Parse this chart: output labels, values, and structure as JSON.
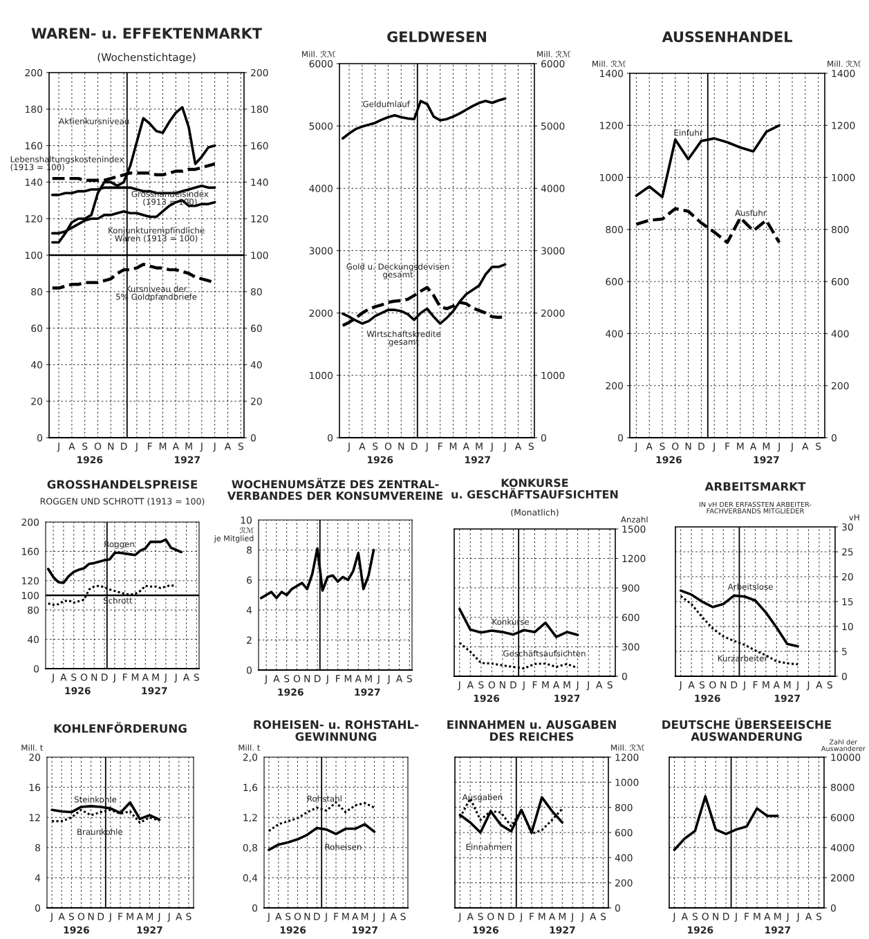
{
  "chart_data": [
    {
      "type": "line",
      "title": "WAREN- u. EFFEKTENMARKT",
      "subtitle": "(Wochenstichtage)",
      "categories": [
        null,
        "J",
        null,
        "A",
        null,
        "S",
        null,
        "O",
        null,
        "N",
        null,
        "D",
        null,
        "J",
        null,
        "F",
        null,
        "M",
        null,
        "A",
        null,
        "M",
        null,
        "J",
        null,
        "J",
        null,
        "A",
        null,
        "S"
      ],
      "ylim": [
        0,
        200
      ],
      "yticks": [
        0,
        20,
        40,
        60,
        80,
        100,
        120,
        140,
        160,
        180,
        200
      ],
      "y2lim": [
        0,
        200
      ],
      "y2ticks": [
        0,
        20,
        40,
        60,
        80,
        100,
        120,
        140,
        160,
        180,
        200
      ],
      "grid": true,
      "series": [
        {
          "name": "Aktienkursniveau",
          "color": "#000000",
          "line_style": "solid",
          "values": [
            107,
            107,
            112,
            118,
            120,
            120,
            122,
            134,
            140,
            140,
            138,
            140,
            149,
            162,
            175,
            172,
            168,
            167,
            173,
            178,
            181,
            170,
            150,
            154,
            159,
            160,
            null,
            null,
            null,
            null
          ]
        },
        {
          "name": "Lebenshaltungskostenindex\n(1913 = 100)",
          "color": "#000000",
          "line_style": "dashed",
          "values": [
            142,
            142,
            142,
            142,
            142,
            141,
            141,
            141,
            141,
            142,
            143,
            144,
            145,
            145,
            145,
            145,
            144,
            144,
            145,
            146,
            146,
            147,
            147,
            148,
            149,
            150,
            null,
            null,
            null,
            null
          ]
        },
        {
          "name": "Grosshandelsindex\n(1913 = 100)",
          "color": "#000000",
          "line_style": "solid",
          "values": [
            133,
            133,
            134,
            134,
            135,
            135,
            136,
            136,
            137,
            137,
            137,
            137,
            137,
            136,
            135,
            135,
            134,
            134,
            134,
            134,
            135,
            136,
            137,
            138,
            137,
            137,
            null,
            null,
            null,
            null
          ]
        },
        {
          "name": "Konjunkturempfindliche\nWaren (1913 = 100)",
          "color": "#000000",
          "line_style": "solid",
          "values": [
            112,
            112,
            113,
            115,
            117,
            119,
            120,
            120,
            122,
            122,
            123,
            124,
            123,
            123,
            122,
            121,
            121,
            124,
            127,
            129,
            130,
            127,
            127,
            128,
            128,
            129,
            null,
            null,
            null,
            null
          ]
        },
        {
          "name": "Kursniveau der\n5% Goldpfandbriefe",
          "color": "#000000",
          "line_style": "dashed",
          "values": [
            82,
            82,
            83,
            84,
            84,
            85,
            85,
            85,
            86,
            87,
            90,
            92,
            92,
            93,
            95,
            94,
            93,
            93,
            92,
            92,
            91,
            90,
            88,
            87,
            86,
            85,
            null,
            null,
            null,
            null
          ]
        }
      ],
      "ref_lines": [
        {
          "axis": "x",
          "value": "D",
          "color": "#000000",
          "line_style": "solid"
        },
        {
          "axis": "y",
          "value": 100,
          "color": "#000000",
          "line_style": "solid"
        }
      ],
      "annotations": [
        "1926",
        "1927"
      ]
    },
    {
      "type": "line",
      "title": "GELDWESEN",
      "ylabel": "Mill. ℛℳ",
      "y2label": "Mill. ℛℳ",
      "categories": [
        null,
        "J",
        null,
        "A",
        null,
        "S",
        null,
        "O",
        null,
        "N",
        null,
        "D",
        null,
        "J",
        null,
        "F",
        null,
        "M",
        null,
        "A",
        null,
        "M",
        null,
        "J",
        null,
        "J",
        null,
        "A",
        null,
        "S"
      ],
      "ylim": [
        0,
        6000
      ],
      "yticks": [
        0,
        1000,
        2000,
        3000,
        4000,
        5000,
        6000
      ],
      "y2lim": [
        0,
        6000
      ],
      "y2ticks": [
        0,
        1000,
        2000,
        3000,
        4000,
        5000,
        6000
      ],
      "grid": true,
      "series": [
        {
          "name": "Geldumlauf",
          "color": "#000000",
          "line_style": "solid",
          "values": [
            4800,
            4880,
            4950,
            4990,
            5020,
            5050,
            5100,
            5140,
            5170,
            5140,
            5120,
            5110,
            5400,
            5350,
            5150,
            5090,
            5110,
            5150,
            5200,
            5260,
            5320,
            5370,
            5400,
            5370,
            5410,
            5440,
            null,
            null,
            null,
            null
          ]
        },
        {
          "name": "Gold u. Deckungsdevisen\ngesamt",
          "color": "#000000",
          "line_style": "dashed",
          "values": [
            1800,
            1850,
            1920,
            2000,
            2060,
            2100,
            2130,
            2170,
            2190,
            2200,
            2220,
            2280,
            2350,
            2410,
            2280,
            2100,
            2070,
            2110,
            2170,
            2150,
            2080,
            2040,
            2000,
            1940,
            1930,
            1940,
            null,
            null,
            null,
            null
          ]
        },
        {
          "name": "Wirtschaftskredite\ngesamt",
          "color": "#000000",
          "line_style": "solid",
          "values": [
            1990,
            1940,
            1880,
            1830,
            1870,
            1950,
            2000,
            2050,
            2050,
            2030,
            1980,
            1890,
            2000,
            2070,
            1940,
            1830,
            1920,
            2030,
            2180,
            2300,
            2370,
            2440,
            2620,
            2740,
            2740,
            2780,
            null,
            null,
            null,
            null
          ]
        }
      ],
      "ref_lines": [
        {
          "axis": "x",
          "value": "D",
          "color": "#000000",
          "line_style": "solid"
        }
      ],
      "annotations": [
        "1926",
        "1927"
      ]
    },
    {
      "type": "line",
      "title": "AUSSENHANDEL",
      "ylabel": "Mill. ℛℳ",
      "y2label": "Mill. ℛℳ",
      "categories": [
        "J",
        "A",
        "S",
        "O",
        "N",
        "D",
        "J",
        "F",
        "M",
        "A",
        "M",
        "J",
        "J",
        "A",
        "S"
      ],
      "ylim": [
        0,
        1400
      ],
      "yticks": [
        0,
        200,
        400,
        600,
        800,
        1000,
        1200,
        1400
      ],
      "y2lim": [
        0,
        1400
      ],
      "y2ticks": [
        0,
        200,
        400,
        600,
        800,
        1000,
        1200,
        1400
      ],
      "grid": true,
      "series": [
        {
          "name": "Einfuhr",
          "color": "#000000",
          "line_style": "solid",
          "values": [
            930,
            965,
            925,
            1145,
            1070,
            1140,
            1150,
            1135,
            1115,
            1100,
            1175,
            1200,
            null,
            null,
            null
          ]
        },
        {
          "name": "Ausfuhr",
          "color": "#000000",
          "line_style": "dashed",
          "values": [
            820,
            835,
            840,
            880,
            870,
            825,
            790,
            750,
            845,
            795,
            835,
            750,
            null,
            null,
            null
          ]
        }
      ],
      "ref_lines": [
        {
          "axis": "x",
          "value": "D",
          "color": "#000000",
          "line_style": "solid"
        }
      ],
      "annotations": [
        "1926",
        "1927"
      ]
    },
    {
      "type": "line",
      "title": "GROSSHANDELSPREISE",
      "subtitle": "ROGGEN UND SCHROTT (1913 = 100)",
      "categories": [
        null,
        "J",
        null,
        "A",
        null,
        "S",
        null,
        "O",
        null,
        "N",
        null,
        "D",
        null,
        "J",
        null,
        "F",
        null,
        "M",
        null,
        "A",
        null,
        "M",
        null,
        "J",
        null,
        "J",
        null,
        "A",
        null,
        "S"
      ],
      "ylim": [
        0,
        200
      ],
      "yticks": [
        0,
        40,
        80,
        100,
        120,
        160,
        200
      ],
      "grid": true,
      "series": [
        {
          "name": "Roggen",
          "color": "#000000",
          "line_style": "solid",
          "values": [
            136,
            125,
            118,
            117,
            126,
            132,
            135,
            137,
            143,
            144,
            146,
            148,
            149,
            158,
            158,
            157,
            156,
            155,
            161,
            164,
            173,
            173,
            173,
            176,
            165,
            162,
            159,
            null,
            null,
            null
          ]
        },
        {
          "name": "Schrott",
          "color": "#000000",
          "line_style": "dotted",
          "values": [
            89,
            87,
            88,
            92,
            93,
            90,
            92,
            94,
            108,
            112,
            113,
            111,
            108,
            106,
            104,
            102,
            101,
            102,
            106,
            113,
            112,
            112,
            110,
            112,
            114,
            112,
            null,
            null,
            null,
            null
          ]
        }
      ],
      "ref_lines": [
        {
          "axis": "x",
          "value": "D",
          "color": "#000000",
          "line_style": "solid"
        },
        {
          "axis": "y",
          "value": 100,
          "color": "#000000",
          "line_style": "solid"
        }
      ],
      "annotations": [
        "1926",
        "1927"
      ]
    },
    {
      "type": "line",
      "title": "WOCHENUMSÄTZE DES ZENTRAL-\nVERBANDES DER KONSUMVEREINE",
      "ylabel": "ℛℳ\nje Mitglied",
      "categories": [
        null,
        "J",
        null,
        "A",
        null,
        "S",
        null,
        "O",
        null,
        "N",
        null,
        "D",
        null,
        "J",
        null,
        "F",
        null,
        "M",
        null,
        "A",
        null,
        "M",
        null,
        "J",
        null,
        "J",
        null,
        "A",
        null,
        "S"
      ],
      "ylim": [
        0,
        10
      ],
      "yticks": [
        0,
        2,
        4,
        6,
        8,
        10
      ],
      "grid": true,
      "series": [
        {
          "color": "#000000",
          "line_style": "solid",
          "values": [
            4.8,
            5.0,
            5.2,
            4.8,
            5.2,
            5.0,
            5.4,
            5.6,
            5.8,
            5.4,
            6.4,
            8.1,
            5.3,
            6.2,
            6.3,
            5.9,
            6.2,
            6.0,
            6.6,
            7.8,
            5.4,
            6.3,
            8.0,
            null,
            null,
            null,
            null,
            null,
            null,
            null
          ]
        }
      ],
      "ref_lines": [
        {
          "axis": "x",
          "value": "D",
          "color": "#000000",
          "line_style": "solid"
        }
      ],
      "annotations": [
        "1926",
        "1927"
      ]
    },
    {
      "type": "line",
      "title": "KONKURSE\nu. GESCHÄFTSAUFSICHTEN",
      "subtitle": "(Monatlich)",
      "y2label": "Anzahl",
      "categories": [
        "J",
        "A",
        "S",
        "O",
        "N",
        "D",
        "J",
        "F",
        "M",
        "A",
        "M",
        "J",
        "J",
        "A",
        "S"
      ],
      "y2lim": [
        0,
        1500
      ],
      "y2ticks": [
        0,
        300,
        600,
        900,
        1200,
        1500
      ],
      "grid": true,
      "series": [
        {
          "name": "Konkurse",
          "color": "#000000",
          "line_style": "solid",
          "axis": "y2",
          "values": [
            685,
            475,
            445,
            465,
            450,
            425,
            470,
            450,
            545,
            400,
            450,
            420,
            null,
            null,
            null
          ]
        },
        {
          "name": "Geschäftsaufsichten",
          "color": "#000000",
          "line_style": "dotted",
          "axis": "y2",
          "values": [
            340,
            250,
            135,
            130,
            110,
            95,
            80,
            125,
            130,
            95,
            125,
            85,
            null,
            null,
            null
          ]
        }
      ],
      "ref_lines": [
        {
          "axis": "x",
          "value": "D",
          "color": "#000000",
          "line_style": "solid"
        }
      ],
      "annotations": [
        "1926",
        "1927"
      ]
    },
    {
      "type": "line",
      "title": "ARBEITSMARKT",
      "subtitle": "IN vH DER ERFASSTEN ARBEITER-\nFACHVERBANDS MITGLIEDER",
      "y2label": "vH",
      "categories": [
        "J",
        "A",
        "S",
        "O",
        "N",
        "D",
        "J",
        "F",
        "M",
        "A",
        "M",
        "J",
        "J",
        "A",
        "S"
      ],
      "y2lim": [
        0,
        30
      ],
      "y2ticks": [
        0,
        5,
        10,
        15,
        20,
        25,
        30
      ],
      "grid": true,
      "series": [
        {
          "name": "Arbeitslose",
          "color": "#000000",
          "line_style": "solid",
          "axis": "y2",
          "values": [
            17.2,
            16.4,
            15.0,
            13.9,
            14.5,
            16.2,
            16.0,
            15.2,
            12.8,
            9.8,
            6.5,
            6.0,
            null,
            null,
            null
          ]
        },
        {
          "name": "Kurzarbeiter",
          "color": "#000000",
          "line_style": "dotted",
          "axis": "y2",
          "values": [
            16.1,
            14.5,
            11.9,
            9.6,
            8.0,
            7.1,
            6.3,
            5.2,
            4.2,
            3.0,
            2.6,
            2.4,
            null,
            null,
            null
          ]
        }
      ],
      "ref_lines": [
        {
          "axis": "x",
          "value": "D",
          "color": "#000000",
          "line_style": "solid"
        }
      ],
      "annotations": [
        "1926",
        "1927"
      ]
    },
    {
      "type": "line",
      "title": "KOHLENFÖRDERUNG",
      "ylabel": "Mill. t",
      "categories": [
        "J",
        "A",
        "S",
        "O",
        "N",
        "D",
        "J",
        "F",
        "M",
        "A",
        "M",
        "J",
        "J",
        "A",
        "S"
      ],
      "ylim": [
        0,
        20
      ],
      "yticks": [
        0,
        4,
        8,
        12,
        16,
        20
      ],
      "grid": true,
      "series": [
        {
          "name": "Steinkohle",
          "color": "#000000",
          "line_style": "solid",
          "values": [
            13.0,
            12.8,
            12.7,
            13.4,
            13.5,
            13.4,
            13.2,
            12.6,
            14.0,
            11.8,
            12.3,
            11.7,
            null,
            null,
            null
          ]
        },
        {
          "name": "Braunkohle",
          "color": "#000000",
          "line_style": "dotted",
          "values": [
            11.5,
            11.5,
            12.0,
            13.0,
            12.3,
            12.7,
            13.0,
            12.5,
            12.8,
            11.3,
            12.0,
            11.6,
            null,
            null,
            null
          ]
        }
      ],
      "ref_lines": [
        {
          "axis": "x",
          "value": "D",
          "color": "#000000",
          "line_style": "solid"
        }
      ],
      "annotations": [
        "1926",
        "1927"
      ]
    },
    {
      "type": "line",
      "title": "ROHEISEN- u. ROHSTAHL-\nGEWINNUNG",
      "ylabel": "Mill. t",
      "categories": [
        "J",
        "A",
        "S",
        "O",
        "N",
        "D",
        "J",
        "F",
        "M",
        "A",
        "M",
        "J",
        "J",
        "A",
        "S"
      ],
      "ylim": [
        0,
        2.0
      ],
      "yticks": [
        0,
        {
          "value": 0.4,
          "label": "0,4"
        },
        {
          "value": 0.8,
          "label": "0,8"
        },
        {
          "value": 1.2,
          "label": "1,2"
        },
        {
          "value": 1.6,
          "label": "1,6"
        },
        {
          "value": 2.0,
          "label": "2,0"
        }
      ],
      "grid": true,
      "series": [
        {
          "name": "Rohstahl",
          "color": "#000000",
          "line_style": "dotted",
          "values": [
            1.02,
            1.11,
            1.15,
            1.19,
            1.27,
            1.33,
            1.29,
            1.4,
            1.27,
            1.36,
            1.39,
            1.33,
            null,
            null,
            null
          ]
        },
        {
          "name": "Roheisen",
          "color": "#000000",
          "line_style": "solid",
          "values": [
            0.77,
            0.84,
            0.87,
            0.91,
            0.97,
            1.06,
            1.04,
            0.98,
            1.05,
            1.05,
            1.11,
            1.01,
            null,
            null,
            null
          ]
        }
      ],
      "ref_lines": [
        {
          "axis": "x",
          "value": "D",
          "color": "#000000",
          "line_style": "solid"
        }
      ],
      "annotations": [
        "1926",
        "1927"
      ]
    },
    {
      "type": "line",
      "title": "EINNAHMEN u. AUSGABEN\nDES REICHES",
      "y2label": "Mill. ℛℳ",
      "categories": [
        "J",
        "A",
        "S",
        "O",
        "N",
        "D",
        "J",
        "F",
        "M",
        "A",
        "M",
        "J",
        "J",
        "A",
        "S"
      ],
      "y2lim": [
        0,
        1200
      ],
      "y2ticks": [
        0,
        200,
        400,
        600,
        800,
        1000,
        1200
      ],
      "grid": true,
      "series": [
        {
          "name": "Ausgaben",
          "color": "#000000",
          "line_style": "dotted",
          "axis": "y2",
          "values": [
            720,
            870,
            700,
            770,
            760,
            650,
            780,
            590,
            620,
            700,
            790,
            null,
            null,
            null,
            null
          ]
        },
        {
          "name": "Einnahmen",
          "color": "#000000",
          "line_style": "solid",
          "axis": "y2",
          "values": [
            740,
            680,
            600,
            770,
            660,
            610,
            780,
            600,
            880,
            770,
            680,
            null,
            null,
            null,
            null
          ]
        }
      ],
      "ref_lines": [
        {
          "axis": "x",
          "value": "D",
          "color": "#000000",
          "line_style": "solid"
        }
      ],
      "annotations": [
        "1926",
        "1927"
      ]
    },
    {
      "type": "line",
      "title": "DEUTSCHE ÜBERSEEISCHE\nAUSWANDERUNG",
      "y2label": "Zahl der\nAuswanderer",
      "categories": [
        "J",
        "A",
        "S",
        "O",
        "N",
        "D",
        "J",
        "F",
        "M",
        "A",
        "M",
        "J",
        "J",
        "A",
        "S"
      ],
      "y2lim": [
        0,
        10000
      ],
      "y2ticks": [
        0,
        2000,
        4000,
        6000,
        8000,
        10000
      ],
      "grid": true,
      "series": [
        {
          "color": "#000000",
          "line_style": "solid",
          "axis": "y2",
          "values": [
            3850,
            4600,
            5100,
            7400,
            5200,
            4900,
            5200,
            5400,
            6600,
            6100,
            6100,
            null,
            null,
            null,
            null
          ]
        }
      ],
      "ref_lines": [
        {
          "axis": "x",
          "value": "D",
          "color": "#000000",
          "line_style": "solid"
        }
      ],
      "annotations": [
        "1926",
        "1927"
      ]
    }
  ]
}
